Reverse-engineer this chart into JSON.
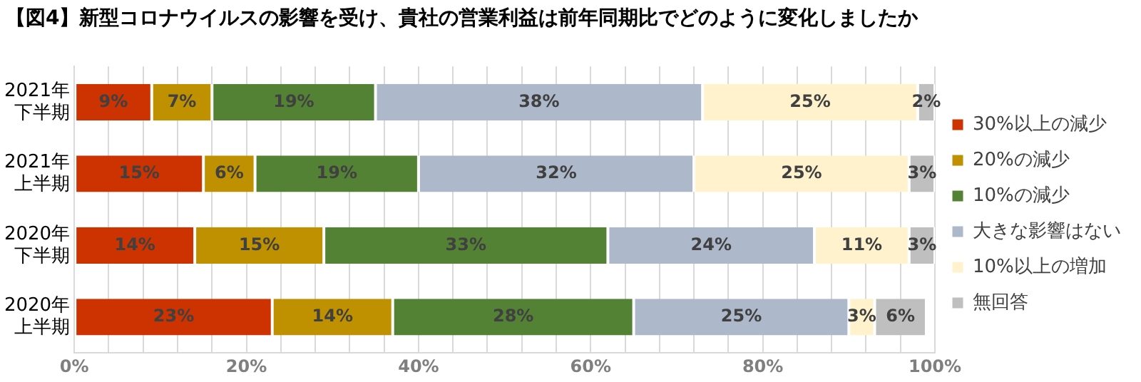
{
  "chart_data": {
    "type": "bar",
    "orientation": "horizontal",
    "stacked": true,
    "title": "【図4】新型コロナウイルスの影響を受け、貴社の営業利益は前年同期比でどのように変化しましたか",
    "categories": [
      "2021年下半期",
      "2021年上半期",
      "2020年下半期",
      "2020年上半期"
    ],
    "series": [
      {
        "name": "30%以上の減少",
        "color": "#cc3300",
        "values": [
          9,
          15,
          14,
          23
        ],
        "value_labels": [
          "9%",
          "15%",
          "14%",
          "23%"
        ]
      },
      {
        "name": "20%の減少",
        "color": "#bf9000",
        "values": [
          7,
          6,
          15,
          14
        ],
        "value_labels": [
          "7%",
          "6%",
          "15%",
          "14%"
        ]
      },
      {
        "name": "10%の減少",
        "color": "#548235",
        "values": [
          19,
          19,
          33,
          28
        ],
        "value_labels": [
          "19%",
          "19%",
          "33%",
          "28%"
        ]
      },
      {
        "name": "大きな影響はない",
        "color": "#adb9ca",
        "values": [
          38,
          32,
          24,
          25
        ],
        "value_labels": [
          "38%",
          "32%",
          "24%",
          "25%"
        ]
      },
      {
        "name": "10%以上の増加",
        "color": "#fff2cc",
        "values": [
          25,
          25,
          11,
          3
        ],
        "value_labels": [
          "25%",
          "25%",
          "11%",
          "3%"
        ]
      },
      {
        "name": "無回答",
        "color": "#bfbfbf",
        "values": [
          2,
          3,
          3,
          6
        ],
        "value_labels": [
          "2%",
          "3%",
          "3%",
          "6%"
        ]
      }
    ],
    "xlim": [
      0,
      100
    ],
    "xticks": [
      {
        "value": 0,
        "label": "0%"
      },
      {
        "value": 4,
        "label": null
      },
      {
        "value": 8,
        "label": null
      },
      {
        "value": 12,
        "label": null
      },
      {
        "value": 16,
        "label": null
      },
      {
        "value": 20,
        "label": "20%"
      },
      {
        "value": 24,
        "label": null
      },
      {
        "value": 28,
        "label": null
      },
      {
        "value": 32,
        "label": null
      },
      {
        "value": 36,
        "label": null
      },
      {
        "value": 40,
        "label": "40%"
      },
      {
        "value": 44,
        "label": null
      },
      {
        "value": 48,
        "label": null
      },
      {
        "value": 52,
        "label": null
      },
      {
        "value": 56,
        "label": null
      },
      {
        "value": 60,
        "label": "60%"
      },
      {
        "value": 64,
        "label": null
      },
      {
        "value": 68,
        "label": null
      },
      {
        "value": 72,
        "label": null
      },
      {
        "value": 76,
        "label": null
      },
      {
        "value": 80,
        "label": "80%"
      },
      {
        "value": 84,
        "label": null
      },
      {
        "value": 88,
        "label": null
      },
      {
        "value": 92,
        "label": null
      },
      {
        "value": 96,
        "label": null
      },
      {
        "value": 100,
        "label": "100%"
      }
    ],
    "grid": "x",
    "legend": "right"
  }
}
